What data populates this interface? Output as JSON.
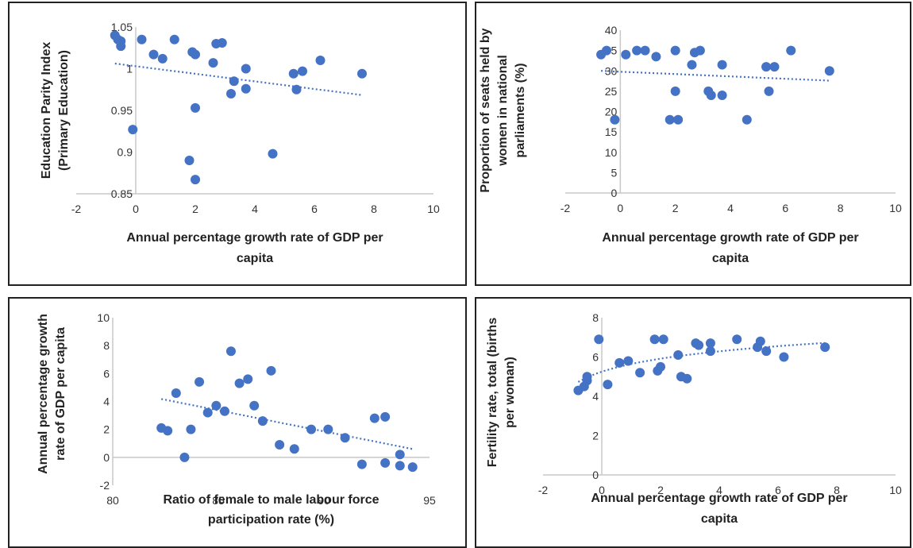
{
  "chart_data": [
    {
      "type": "scatter",
      "id": "edu",
      "xlabel": [
        "Annual percentage growth rate of GDP per",
        "capita"
      ],
      "ylabel": [
        "Education Parity Index",
        "(Primary Education)"
      ],
      "xlim": [
        -2,
        10
      ],
      "ylim": [
        0.85,
        1.05
      ],
      "xticks": [
        "-2",
        "0",
        "2",
        "4",
        "6",
        "8",
        "10"
      ],
      "yticks": [
        "0.85",
        "0.9",
        "0.95",
        "1",
        "1.05"
      ],
      "color": "#4472c4",
      "trendline": "linear",
      "points": [
        {
          "x": -0.7,
          "y": 1.04
        },
        {
          "x": -0.6,
          "y": 1.035
        },
        {
          "x": -0.5,
          "y": 1.033
        },
        {
          "x": -0.5,
          "y": 1.027
        },
        {
          "x": 0.2,
          "y": 1.035
        },
        {
          "x": 0.6,
          "y": 1.017
        },
        {
          "x": 0.9,
          "y": 1.012
        },
        {
          "x": 1.3,
          "y": 1.035
        },
        {
          "x": 1.9,
          "y": 1.02
        },
        {
          "x": 2.0,
          "y": 1.017
        },
        {
          "x": 2.6,
          "y": 1.007
        },
        {
          "x": 2.7,
          "y": 1.03
        },
        {
          "x": 2.9,
          "y": 1.031
        },
        {
          "x": 3.7,
          "y": 1.0
        },
        {
          "x": 3.3,
          "y": 0.985
        },
        {
          "x": 3.7,
          "y": 0.976
        },
        {
          "x": 3.2,
          "y": 0.97
        },
        {
          "x": 5.3,
          "y": 0.994
        },
        {
          "x": 5.6,
          "y": 0.997
        },
        {
          "x": 5.4,
          "y": 0.975
        },
        {
          "x": 6.2,
          "y": 1.01
        },
        {
          "x": 7.6,
          "y": 0.994
        },
        {
          "x": 2.0,
          "y": 0.953
        },
        {
          "x": -0.1,
          "y": 0.927
        },
        {
          "x": 1.8,
          "y": 0.89
        },
        {
          "x": 2.0,
          "y": 0.867
        },
        {
          "x": 4.6,
          "y": 0.898
        }
      ]
    },
    {
      "type": "scatter",
      "id": "seats",
      "xlabel": [
        "Annual percentage growth rate of GDP per",
        "capita"
      ],
      "ylabel": [
        "Proportion of seats held by",
        "women in national",
        "parliaments (%)"
      ],
      "xlim": [
        -2,
        10
      ],
      "ylim": [
        0,
        40
      ],
      "xticks": [
        "-2",
        "0",
        "2",
        "4",
        "6",
        "8",
        "10"
      ],
      "yticks": [
        "0",
        "5",
        "10",
        "15",
        "20",
        "25",
        "30",
        "35",
        "40"
      ],
      "color": "#4472c4",
      "trendline": "linear",
      "points": [
        {
          "x": -0.7,
          "y": 34
        },
        {
          "x": -0.5,
          "y": 35
        },
        {
          "x": -0.2,
          "y": 18
        },
        {
          "x": 0.2,
          "y": 34
        },
        {
          "x": 0.6,
          "y": 35
        },
        {
          "x": 0.9,
          "y": 35
        },
        {
          "x": 1.3,
          "y": 33.5
        },
        {
          "x": 1.8,
          "y": 18
        },
        {
          "x": 2.0,
          "y": 35
        },
        {
          "x": 2.0,
          "y": 25
        },
        {
          "x": 2.1,
          "y": 18
        },
        {
          "x": 2.6,
          "y": 31.5
        },
        {
          "x": 2.7,
          "y": 34.5
        },
        {
          "x": 2.9,
          "y": 35
        },
        {
          "x": 3.2,
          "y": 25
        },
        {
          "x": 3.3,
          "y": 24
        },
        {
          "x": 3.7,
          "y": 24
        },
        {
          "x": 3.7,
          "y": 31.5
        },
        {
          "x": 4.6,
          "y": 18
        },
        {
          "x": 5.3,
          "y": 31
        },
        {
          "x": 5.4,
          "y": 25
        },
        {
          "x": 5.6,
          "y": 31
        },
        {
          "x": 6.2,
          "y": 35
        },
        {
          "x": 7.6,
          "y": 30
        }
      ]
    },
    {
      "type": "scatter",
      "id": "labour",
      "xlabel": [
        "Ratio of female to male labour force",
        "participation rate (%)"
      ],
      "ylabel": [
        "Annual percentage growth",
        "rate of GDP per capita"
      ],
      "xlim": [
        80,
        95
      ],
      "ylim": [
        -2,
        10
      ],
      "xticks": [
        "80",
        "85",
        "90",
        "95"
      ],
      "yticks": [
        "-2",
        "0",
        "2",
        "4",
        "6",
        "8",
        "10"
      ],
      "color": "#4472c4",
      "trendline": "linear",
      "points": [
        {
          "x": 82.3,
          "y": 2.1
        },
        {
          "x": 82.6,
          "y": 1.9
        },
        {
          "x": 83.0,
          "y": 4.6
        },
        {
          "x": 83.4,
          "y": 0.0
        },
        {
          "x": 83.7,
          "y": 2.0
        },
        {
          "x": 84.1,
          "y": 5.4
        },
        {
          "x": 84.5,
          "y": 3.2
        },
        {
          "x": 84.9,
          "y": 3.7
        },
        {
          "x": 85.3,
          "y": 3.3
        },
        {
          "x": 85.6,
          "y": 7.6
        },
        {
          "x": 86.0,
          "y": 5.3
        },
        {
          "x": 86.4,
          "y": 5.6
        },
        {
          "x": 86.7,
          "y": 3.7
        },
        {
          "x": 87.1,
          "y": 2.6
        },
        {
          "x": 87.5,
          "y": 6.2
        },
        {
          "x": 87.9,
          "y": 0.9
        },
        {
          "x": 88.6,
          "y": 0.6
        },
        {
          "x": 89.4,
          "y": 2.0
        },
        {
          "x": 90.2,
          "y": 2.0
        },
        {
          "x": 91.0,
          "y": 1.4
        },
        {
          "x": 91.8,
          "y": -0.5
        },
        {
          "x": 92.4,
          "y": 2.8
        },
        {
          "x": 92.9,
          "y": 2.9
        },
        {
          "x": 92.9,
          "y": -0.4
        },
        {
          "x": 93.6,
          "y": -0.6
        },
        {
          "x": 93.6,
          "y": 0.2
        },
        {
          "x": 94.2,
          "y": -0.7
        }
      ]
    },
    {
      "type": "scatter",
      "id": "fertility",
      "xlabel": [
        "Annual percentage growth rate of GDP per",
        "capita"
      ],
      "ylabel": [
        "Fertility rate, total (births",
        "per woman)"
      ],
      "xlim": [
        -2,
        10
      ],
      "ylim": [
        0,
        8
      ],
      "xticks": [
        "-2",
        "0",
        "2",
        "4",
        "6",
        "8",
        "10"
      ],
      "yticks": [
        "0",
        "2",
        "4",
        "6",
        "8"
      ],
      "color": "#4472c4",
      "trendline": "logarithmic",
      "points": [
        {
          "x": -0.8,
          "y": 4.3
        },
        {
          "x": -0.6,
          "y": 4.5
        },
        {
          "x": -0.5,
          "y": 4.8
        },
        {
          "x": -0.5,
          "y": 5.0
        },
        {
          "x": -0.1,
          "y": 6.9
        },
        {
          "x": 0.2,
          "y": 4.6
        },
        {
          "x": 0.6,
          "y": 5.7
        },
        {
          "x": 0.9,
          "y": 5.8
        },
        {
          "x": 1.3,
          "y": 5.2
        },
        {
          "x": 1.8,
          "y": 6.9
        },
        {
          "x": 1.9,
          "y": 5.3
        },
        {
          "x": 2.0,
          "y": 5.5
        },
        {
          "x": 2.1,
          "y": 6.9
        },
        {
          "x": 2.6,
          "y": 6.1
        },
        {
          "x": 2.7,
          "y": 5.0
        },
        {
          "x": 2.9,
          "y": 4.9
        },
        {
          "x": 3.2,
          "y": 6.7
        },
        {
          "x": 3.3,
          "y": 6.6
        },
        {
          "x": 3.7,
          "y": 6.7
        },
        {
          "x": 3.7,
          "y": 6.3
        },
        {
          "x": 4.6,
          "y": 6.9
        },
        {
          "x": 5.3,
          "y": 6.5
        },
        {
          "x": 5.4,
          "y": 6.8
        },
        {
          "x": 5.6,
          "y": 6.3
        },
        {
          "x": 6.2,
          "y": 6.0
        },
        {
          "x": 7.6,
          "y": 6.5
        }
      ]
    }
  ]
}
